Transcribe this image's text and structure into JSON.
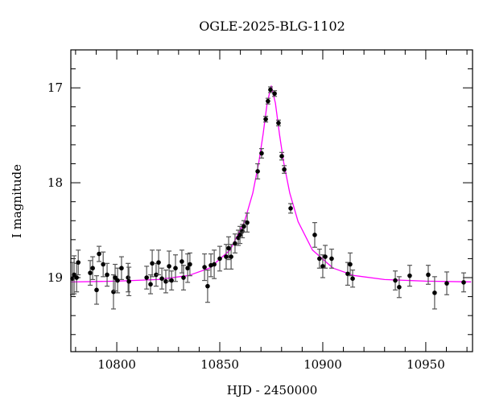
{
  "chart_data": {
    "type": "scatter",
    "title": "OGLE-2025-BLG-1102",
    "xlabel": "HJD - 2450000",
    "ylabel": "I magnitude",
    "xlim": [
      10777.7,
      10972.7
    ],
    "ylim": [
      19.78,
      16.6
    ],
    "y_inverted": true,
    "x_ticks": [
      10800,
      10850,
      10900,
      10950
    ],
    "y_ticks": [
      17,
      18,
      19
    ],
    "grid": false,
    "colors": {
      "points": "#000000",
      "errorbars": "#555555",
      "model": "#ff00ff"
    },
    "data": {
      "x": [
        10778.5,
        10779.3,
        10780.5,
        10781.3,
        10787.1,
        10788.3,
        10790.2,
        10791.4,
        10793.4,
        10795.3,
        10798.4,
        10799.2,
        10800.4,
        10802.3,
        10805.5,
        10805.9,
        10814.5,
        10816.4,
        10817.2,
        10819.1,
        10820.3,
        10821.9,
        10823.8,
        10825.4,
        10826.6,
        10828.5,
        10831.6,
        10832.4,
        10834.4,
        10835.5,
        10842.6,
        10844.1,
        10845.7,
        10847.3,
        10850.0,
        10853.1,
        10854.3,
        10855.5,
        10857.4,
        10859.0,
        10859.8,
        10861.0,
        10861.7,
        10863.3,
        10868.4,
        10870.3,
        10872.3,
        10873.4,
        10874.6,
        10876.6,
        10878.5,
        10880.1,
        10881.3,
        10884.4,
        10896.1,
        10898.4,
        10900.0,
        10901.2,
        10904.3,
        10912.1,
        10913.3,
        10914.5,
        10935.2,
        10937.1,
        10942.2,
        10951.2,
        10954.3,
        10960.2,
        10968.4
      ],
      "y": [
        19.01,
        18.97,
        19.0,
        18.84,
        18.95,
        18.9,
        19.13,
        18.75,
        18.86,
        18.97,
        19.15,
        19.0,
        19.03,
        18.9,
        19.0,
        19.04,
        19.0,
        19.07,
        18.85,
        18.97,
        18.84,
        19.01,
        19.04,
        18.88,
        19.03,
        18.9,
        18.83,
        19.0,
        18.9,
        18.86,
        18.89,
        19.09,
        18.87,
        18.86,
        18.8,
        18.78,
        18.69,
        18.78,
        18.64,
        18.58,
        18.55,
        18.51,
        18.46,
        18.42,
        17.88,
        17.69,
        17.33,
        17.14,
        17.02,
        17.06,
        17.37,
        17.72,
        17.86,
        18.27,
        18.55,
        18.8,
        18.88,
        18.78,
        18.8,
        18.96,
        18.86,
        19.01,
        19.03,
        19.1,
        18.98,
        18.97,
        19.16,
        19.06,
        19.05
      ],
      "yerr": [
        0.17,
        0.2,
        0.15,
        0.13,
        0.13,
        0.12,
        0.15,
        0.08,
        0.13,
        0.12,
        0.18,
        0.14,
        0.13,
        0.12,
        0.15,
        0.15,
        0.12,
        0.1,
        0.14,
        0.12,
        0.13,
        0.11,
        0.12,
        0.16,
        0.1,
        0.14,
        0.12,
        0.13,
        0.15,
        0.12,
        0.14,
        0.17,
        0.12,
        0.15,
        0.13,
        0.13,
        0.12,
        0.13,
        0.1,
        0.08,
        0.09,
        0.07,
        0.06,
        0.1,
        0.08,
        0.05,
        0.03,
        0.03,
        0.03,
        0.03,
        0.03,
        0.04,
        0.04,
        0.05,
        0.13,
        0.1,
        0.12,
        0.12,
        0.1,
        0.12,
        0.12,
        0.09,
        0.1,
        0.11,
        0.11,
        0.1,
        0.17,
        0.12,
        0.1
      ]
    },
    "model": {
      "x": [
        10778,
        10800,
        10820,
        10835,
        10845,
        10855,
        10862,
        10866,
        10869,
        10871,
        10873,
        10875,
        10877,
        10879,
        10881,
        10884,
        10888,
        10895,
        10905,
        10915,
        10930,
        10950,
        10972
      ],
      "y": [
        19.046,
        19.037,
        19.02,
        18.977,
        18.9,
        18.71,
        18.41,
        18.11,
        17.78,
        17.49,
        17.16,
        16.98,
        17.16,
        17.49,
        17.78,
        18.11,
        18.41,
        18.71,
        18.9,
        18.977,
        19.02,
        19.037,
        19.045
      ]
    }
  }
}
